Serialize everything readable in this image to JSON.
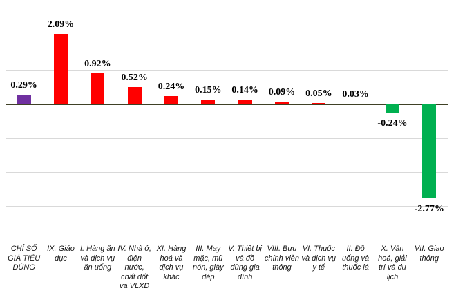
{
  "chart_data": {
    "type": "bar",
    "title": "",
    "xlabel": "",
    "ylabel": "",
    "categories": [
      "CHỈ SỐ GIÁ TIÊU DÙNG",
      "IX. Giáo dục",
      "I. Hàng ăn và dịch vụ ăn uống",
      "IV. Nhà ở, điện nước, chất đốt và VLXD",
      "XI. Hàng hoá và dịch vụ khác",
      "III. May mặc, mũ nón, giày dép",
      "V. Thiết bị và đồ dùng gia đình",
      "VIII. Bưu chính viễn thông",
      "VI. Thuốc và dịch vụ y tế",
      "II. Đồ uống và thuốc lá",
      "X. Văn hoá, giải trí và du lịch",
      "VII. Giao thông"
    ],
    "values": [
      0.29,
      2.09,
      0.92,
      0.52,
      0.24,
      0.15,
      0.14,
      0.09,
      0.05,
      0.03,
      -0.24,
      -2.77
    ],
    "value_labels": [
      "0.29%",
      "2.09%",
      "0.92%",
      "0.52%",
      "0.24%",
      "0.15%",
      "0.14%",
      "0.09%",
      "0.05%",
      "0.03%",
      "-0.24%",
      "-2.77%"
    ],
    "bar_colors": [
      "#7030a0",
      "#ff0000",
      "#ff0000",
      "#ff0000",
      "#ff0000",
      "#ff0000",
      "#ff0000",
      "#ff0000",
      "#ff0000",
      "#ff0000",
      "#00b050",
      "#00b050"
    ],
    "ylim": [
      -4,
      3
    ],
    "gridline_step": 1,
    "grid": true,
    "legend": false,
    "data_labels": "outside-end",
    "colors": {
      "cpi_total_bar": "#7030a0",
      "increase_bar": "#ff0000",
      "decrease_bar": "#00b050",
      "gridline": "#d9d9d9",
      "zero_axis_line": "#3f4126",
      "label_text": "#000000"
    }
  }
}
